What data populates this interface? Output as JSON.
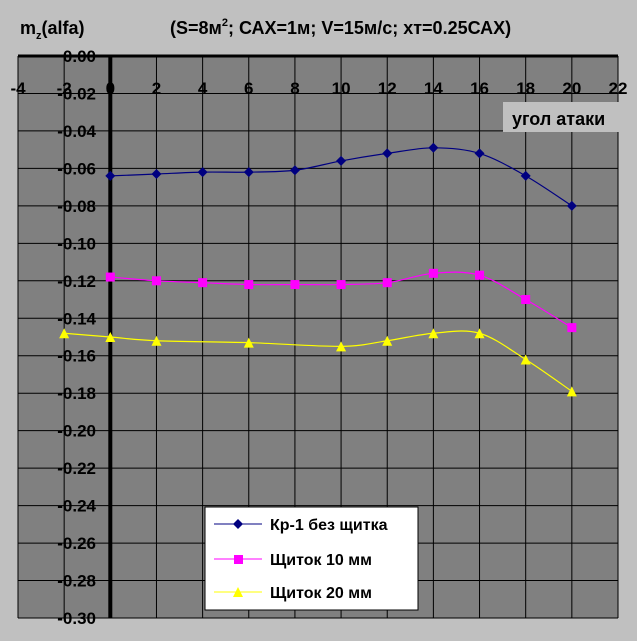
{
  "chart_data": {
    "type": "line",
    "title_prefix": "m",
    "title_sub": "z",
    "title_suffix": "(alfa)",
    "title_params_part1": "(S=8м",
    "title_params_sup": "2",
    "title_params_part2": "; САХ=1м; V=15м/с; хт=0.25САХ)",
    "xlabel": "угол атаки",
    "ylabel": "",
    "xlim": [
      -4,
      22
    ],
    "ylim": [
      -0.3,
      0.0
    ],
    "xticks": [
      -4,
      -2,
      0,
      2,
      4,
      6,
      8,
      10,
      12,
      14,
      16,
      18,
      20,
      22
    ],
    "yticks": [
      0.0,
      -0.02,
      -0.04,
      -0.06,
      -0.08,
      -0.1,
      -0.12,
      -0.14,
      -0.16,
      -0.18,
      -0.2,
      -0.22,
      -0.24,
      -0.26,
      -0.28,
      -0.3
    ],
    "grid": true,
    "legend_position": "bottom-center",
    "series": [
      {
        "name": "Кр-1 без щитка",
        "color": "#000080",
        "marker": "diamond",
        "x": [
          0,
          2,
          4,
          6,
          8,
          10,
          12,
          14,
          16,
          18,
          20
        ],
        "values": [
          -0.064,
          -0.063,
          -0.062,
          -0.062,
          -0.061,
          -0.056,
          -0.052,
          -0.049,
          -0.052,
          -0.064,
          -0.08
        ]
      },
      {
        "name": "Щиток 10 мм",
        "color": "#ff00ff",
        "marker": "square",
        "x": [
          0,
          2,
          4,
          6,
          8,
          10,
          12,
          14,
          16,
          18,
          20
        ],
        "values": [
          -0.118,
          -0.12,
          -0.121,
          -0.122,
          -0.122,
          -0.122,
          -0.121,
          -0.116,
          -0.117,
          -0.13,
          -0.145
        ]
      },
      {
        "name": "Щиток 20 мм",
        "color": "#ffff00",
        "marker": "triangle",
        "x": [
          -2,
          0,
          2,
          4,
          6,
          8,
          10,
          12,
          14,
          16,
          18,
          20
        ],
        "values": [
          -0.148,
          -0.15,
          -0.152,
          null,
          -0.153,
          null,
          -0.155,
          -0.152,
          -0.148,
          -0.148,
          -0.162,
          -0.179
        ]
      }
    ]
  }
}
